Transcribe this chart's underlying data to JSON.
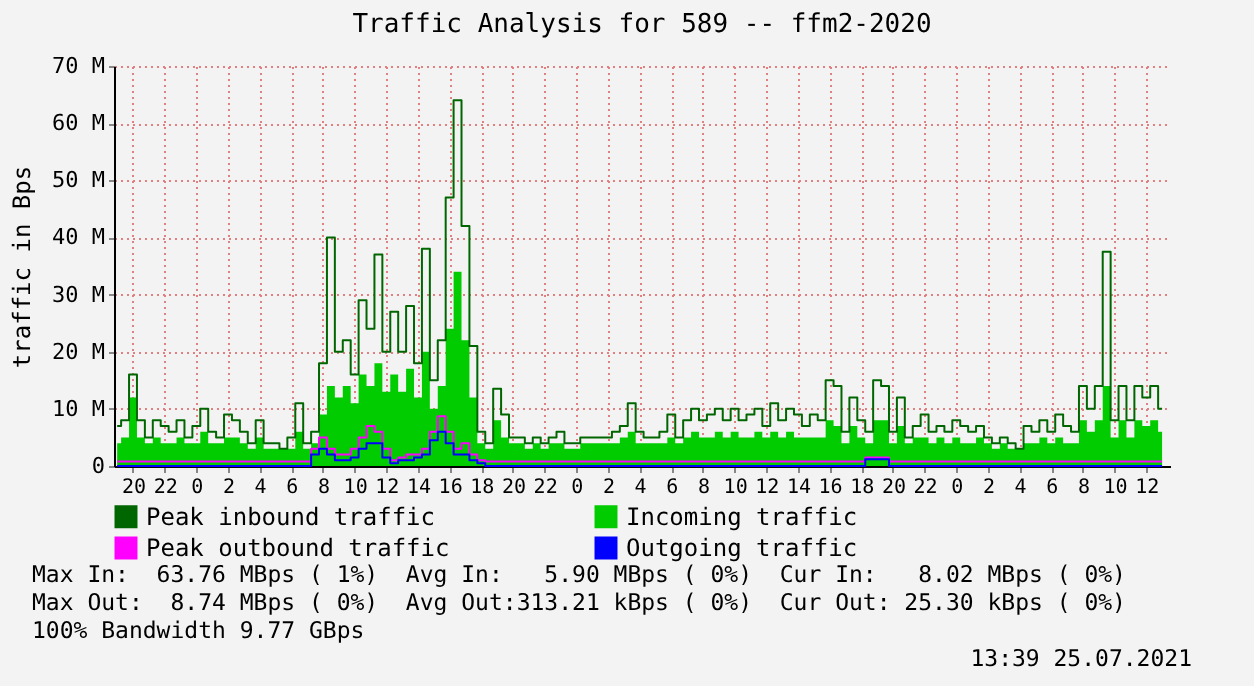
{
  "chart_data": {
    "type": "step",
    "title": "Traffic Analysis for 589 -- ffm2-2020",
    "ylabel": "traffic in Bps",
    "xlim": [
      "2021-07-22T18:48",
      "2021-07-25T13:30"
    ],
    "xticks": [
      {
        "value": "2021-07-22T20:00",
        "label": "20"
      },
      {
        "value": "2021-07-22T22:00",
        "label": "22"
      },
      {
        "value": "2021-07-23T00:00",
        "label": "0"
      },
      {
        "value": "2021-07-23T02:00",
        "label": "2"
      },
      {
        "value": "2021-07-23T04:00",
        "label": "4"
      },
      {
        "value": "2021-07-23T06:00",
        "label": "6"
      },
      {
        "value": "2021-07-23T08:00",
        "label": "8"
      },
      {
        "value": "2021-07-23T10:00",
        "label": "10"
      },
      {
        "value": "2021-07-23T12:00",
        "label": "12"
      },
      {
        "value": "2021-07-23T14:00",
        "label": "14"
      },
      {
        "value": "2021-07-23T16:00",
        "label": "16"
      },
      {
        "value": "2021-07-23T18:00",
        "label": "18"
      },
      {
        "value": "2021-07-23T20:00",
        "label": "20"
      },
      {
        "value": "2021-07-23T22:00",
        "label": "22"
      },
      {
        "value": "2021-07-24T00:00",
        "label": "0"
      },
      {
        "value": "2021-07-24T02:00",
        "label": "2"
      },
      {
        "value": "2021-07-24T04:00",
        "label": "4"
      },
      {
        "value": "2021-07-24T06:00",
        "label": "6"
      },
      {
        "value": "2021-07-24T08:00",
        "label": "8"
      },
      {
        "value": "2021-07-24T10:00",
        "label": "10"
      },
      {
        "value": "2021-07-24T12:00",
        "label": "12"
      },
      {
        "value": "2021-07-24T14:00",
        "label": "14"
      },
      {
        "value": "2021-07-24T16:00",
        "label": "16"
      },
      {
        "value": "2021-07-24T18:00",
        "label": "18"
      },
      {
        "value": "2021-07-24T20:00",
        "label": "20"
      },
      {
        "value": "2021-07-24T22:00",
        "label": "22"
      },
      {
        "value": "2021-07-25T00:00",
        "label": "0"
      },
      {
        "value": "2021-07-25T02:00",
        "label": "2"
      },
      {
        "value": "2021-07-25T04:00",
        "label": "4"
      },
      {
        "value": "2021-07-25T06:00",
        "label": "6"
      },
      {
        "value": "2021-07-25T08:00",
        "label": "8"
      },
      {
        "value": "2021-07-25T10:00",
        "label": "10"
      },
      {
        "value": "2021-07-25T12:00",
        "label": "12"
      }
    ],
    "ylim": [
      0,
      70
    ],
    "yticks": [
      0,
      {
        "value": 10,
        "label": "10 M"
      },
      {
        "value": 20,
        "label": "20 M"
      },
      {
        "value": 30,
        "label": "30 M"
      },
      {
        "value": 40,
        "label": "40 M"
      },
      {
        "value": 50,
        "label": "50 M"
      },
      {
        "value": 60,
        "label": "60 M"
      },
      {
        "value": 70,
        "label": "70 M"
      }
    ],
    "grid": true,
    "legend": "bottom",
    "x": [
      "2021-07-22T19:00",
      "2021-07-22T19:30",
      "2021-07-22T20:00",
      "2021-07-22T20:30",
      "2021-07-22T21:00",
      "2021-07-22T21:30",
      "2021-07-22T22:00",
      "2021-07-22T22:30",
      "2021-07-22T23:00",
      "2021-07-22T23:30",
      "2021-07-23T00:00",
      "2021-07-23T00:30",
      "2021-07-23T01:00",
      "2021-07-23T01:30",
      "2021-07-23T02:00",
      "2021-07-23T02:30",
      "2021-07-23T03:00",
      "2021-07-23T03:30",
      "2021-07-23T04:00",
      "2021-07-23T04:30",
      "2021-07-23T05:00",
      "2021-07-23T05:30",
      "2021-07-23T06:00",
      "2021-07-23T06:30",
      "2021-07-23T07:00",
      "2021-07-23T07:30",
      "2021-07-23T08:00",
      "2021-07-23T08:30",
      "2021-07-23T09:00",
      "2021-07-23T09:30",
      "2021-07-23T10:00",
      "2021-07-23T10:30",
      "2021-07-23T11:00",
      "2021-07-23T11:30",
      "2021-07-23T12:00",
      "2021-07-23T12:30",
      "2021-07-23T13:00",
      "2021-07-23T13:30",
      "2021-07-23T14:00",
      "2021-07-23T14:30",
      "2021-07-23T15:00",
      "2021-07-23T15:30",
      "2021-07-23T16:00",
      "2021-07-23T16:30",
      "2021-07-23T17:00",
      "2021-07-23T17:30",
      "2021-07-23T18:00",
      "2021-07-23T18:30",
      "2021-07-23T19:00",
      "2021-07-23T19:30",
      "2021-07-23T20:00",
      "2021-07-23T20:30",
      "2021-07-23T21:00",
      "2021-07-23T21:30",
      "2021-07-23T22:00",
      "2021-07-23T22:30",
      "2021-07-23T23:00",
      "2021-07-23T23:30",
      "2021-07-24T00:00",
      "2021-07-24T00:30",
      "2021-07-24T01:00",
      "2021-07-24T01:30",
      "2021-07-24T02:00",
      "2021-07-24T02:30",
      "2021-07-24T03:00",
      "2021-07-24T03:30",
      "2021-07-24T04:00",
      "2021-07-24T04:30",
      "2021-07-24T05:00",
      "2021-07-24T05:30",
      "2021-07-24T06:00",
      "2021-07-24T06:30",
      "2021-07-24T07:00",
      "2021-07-24T07:30",
      "2021-07-24T08:00",
      "2021-07-24T08:30",
      "2021-07-24T09:00",
      "2021-07-24T09:30",
      "2021-07-24T10:00",
      "2021-07-24T10:30",
      "2021-07-24T11:00",
      "2021-07-24T11:30",
      "2021-07-24T12:00",
      "2021-07-24T12:30",
      "2021-07-24T13:00",
      "2021-07-24T13:30",
      "2021-07-24T14:00",
      "2021-07-24T14:30",
      "2021-07-24T15:00",
      "2021-07-24T15:30",
      "2021-07-24T16:00",
      "2021-07-24T16:30",
      "2021-07-24T17:00",
      "2021-07-24T17:30",
      "2021-07-24T18:00",
      "2021-07-24T18:30",
      "2021-07-24T19:00",
      "2021-07-24T19:30",
      "2021-07-24T20:00",
      "2021-07-24T20:30",
      "2021-07-24T21:00",
      "2021-07-24T21:30",
      "2021-07-24T22:00",
      "2021-07-24T22:30",
      "2021-07-24T23:00",
      "2021-07-24T23:30",
      "2021-07-25T00:00",
      "2021-07-25T00:30",
      "2021-07-25T01:00",
      "2021-07-25T01:30",
      "2021-07-25T02:00",
      "2021-07-25T02:30",
      "2021-07-25T03:00",
      "2021-07-25T03:30",
      "2021-07-25T04:00",
      "2021-07-25T04:30",
      "2021-07-25T05:00",
      "2021-07-25T05:30",
      "2021-07-25T06:00",
      "2021-07-25T06:30",
      "2021-07-25T07:00",
      "2021-07-25T07:30",
      "2021-07-25T08:00",
      "2021-07-25T08:30",
      "2021-07-25T09:00",
      "2021-07-25T09:30",
      "2021-07-25T10:00",
      "2021-07-25T10:30",
      "2021-07-25T11:00",
      "2021-07-25T11:30",
      "2021-07-25T12:00",
      "2021-07-25T12:30",
      "2021-07-25T13:00"
    ],
    "series": [
      {
        "name": "Peak inbound traffic",
        "color": "#006600",
        "values": [
          7,
          8,
          16,
          8,
          5,
          8,
          7,
          6,
          8,
          5,
          7,
          10,
          6,
          5,
          9,
          8,
          6,
          4,
          8,
          4,
          4,
          3,
          5,
          11,
          4,
          6,
          18,
          40,
          20,
          22,
          16,
          29,
          24,
          37,
          20,
          27,
          20,
          28,
          18,
          38,
          15,
          22,
          47,
          64,
          42,
          21,
          6,
          4,
          13.5,
          9,
          5,
          5,
          4,
          5,
          4,
          5,
          6,
          4,
          4,
          5,
          5,
          5,
          5,
          6,
          7,
          11,
          6,
          5,
          5,
          6,
          9,
          5,
          8,
          10,
          8,
          9,
          10,
          8,
          10,
          8,
          9,
          10,
          7,
          11,
          8,
          10,
          9,
          7,
          9,
          8,
          15,
          14,
          6,
          12,
          8,
          6,
          15,
          14,
          6,
          12,
          5,
          7,
          9,
          6,
          7,
          6,
          8,
          7,
          6,
          7,
          5,
          4,
          5,
          4,
          3,
          7,
          6,
          8,
          6,
          9,
          7,
          6,
          14,
          10,
          14,
          37.5,
          8,
          14,
          8,
          14,
          12,
          14,
          10
        ]
      },
      {
        "name": "Incoming traffic",
        "type": "area",
        "color": "#00cc00",
        "values": [
          4,
          5,
          12,
          5,
          4,
          5,
          4,
          4,
          5,
          4,
          4,
          6,
          4,
          4,
          5,
          5,
          4,
          3,
          5,
          3,
          3,
          3,
          3,
          6,
          3,
          4,
          9,
          14,
          12,
          14,
          11,
          16,
          14,
          18,
          13,
          16,
          13,
          17,
          12,
          20,
          10,
          14,
          24,
          34,
          22,
          12,
          4,
          3,
          8,
          5,
          4,
          4,
          3,
          4,
          3,
          4,
          4,
          3,
          3,
          4,
          4,
          4,
          4,
          4,
          5,
          6,
          4,
          4,
          4,
          4,
          5,
          4,
          5,
          6,
          5,
          5,
          6,
          5,
          6,
          5,
          5,
          6,
          5,
          6,
          5,
          6,
          5,
          5,
          5,
          5,
          8,
          7,
          4,
          7,
          5,
          4,
          8,
          8,
          4,
          7,
          4,
          5,
          5,
          4,
          5,
          4,
          5,
          4,
          4,
          5,
          4,
          3,
          4,
          3,
          3,
          4,
          4,
          5,
          4,
          5,
          4,
          4,
          8,
          6,
          8,
          14,
          5,
          8,
          5,
          8,
          7,
          8,
          6
        ]
      },
      {
        "name": "Peak outbound traffic",
        "color": "#ff00ff",
        "x": [
          "2021-07-22T19:00",
          "2021-07-22T22:00",
          "2021-07-23T01:00",
          "2021-07-23T04:00",
          "2021-07-23T07:00",
          "2021-07-23T07:30",
          "2021-07-23T08:00",
          "2021-07-23T08:30",
          "2021-07-23T09:00",
          "2021-07-23T09:30",
          "2021-07-23T10:00",
          "2021-07-23T10:30",
          "2021-07-23T11:00",
          "2021-07-23T11:30",
          "2021-07-23T12:00",
          "2021-07-23T12:30",
          "2021-07-23T13:00",
          "2021-07-23T13:30",
          "2021-07-23T14:00",
          "2021-07-23T14:30",
          "2021-07-23T15:00",
          "2021-07-23T15:30",
          "2021-07-23T16:00",
          "2021-07-23T16:30",
          "2021-07-23T17:00",
          "2021-07-23T17:30",
          "2021-07-23T18:00",
          "2021-07-23T18:30",
          "2021-07-23T19:00",
          "2021-07-23T22:00",
          "2021-07-24T02:00",
          "2021-07-24T07:00",
          "2021-07-24T12:00",
          "2021-07-24T17:00",
          "2021-07-24T19:30",
          "2021-07-24T20:00",
          "2021-07-24T22:00",
          "2021-07-25T03:00",
          "2021-07-25T08:00",
          "2021-07-25T13:00"
        ],
        "values": [
          0.8,
          0.8,
          0.8,
          0.8,
          0.8,
          3,
          5,
          3,
          2,
          2,
          3,
          5,
          7,
          6,
          3,
          1,
          1.5,
          2,
          2,
          3,
          6,
          8.7,
          6,
          3,
          4,
          2,
          1,
          0.8,
          0.8,
          0.8,
          0.8,
          0.8,
          0.8,
          0.8,
          1.5,
          0.8,
          0.8,
          0.8,
          0.8,
          0.8
        ]
      },
      {
        "name": "Outgoing traffic",
        "color": "#0000ff",
        "x": [
          "2021-07-22T19:00",
          "2021-07-22T22:00",
          "2021-07-23T01:00",
          "2021-07-23T04:00",
          "2021-07-23T07:00",
          "2021-07-23T07:30",
          "2021-07-23T08:00",
          "2021-07-23T08:30",
          "2021-07-23T09:00",
          "2021-07-23T09:30",
          "2021-07-23T10:00",
          "2021-07-23T10:30",
          "2021-07-23T11:00",
          "2021-07-23T11:30",
          "2021-07-23T12:00",
          "2021-07-23T12:30",
          "2021-07-23T13:00",
          "2021-07-23T13:30",
          "2021-07-23T14:00",
          "2021-07-23T14:30",
          "2021-07-23T15:00",
          "2021-07-23T15:30",
          "2021-07-23T16:00",
          "2021-07-23T16:30",
          "2021-07-23T17:00",
          "2021-07-23T17:30",
          "2021-07-23T18:00",
          "2021-07-23T18:30",
          "2021-07-23T19:00",
          "2021-07-23T22:00",
          "2021-07-24T02:00",
          "2021-07-24T07:00",
          "2021-07-24T12:00",
          "2021-07-24T17:00",
          "2021-07-24T19:30",
          "2021-07-24T20:00",
          "2021-07-24T22:00",
          "2021-07-25T03:00",
          "2021-07-25T08:00",
          "2021-07-25T13:00"
        ],
        "values": [
          0,
          0,
          0,
          0,
          0,
          2,
          3,
          2,
          1,
          1,
          1.5,
          3,
          4,
          4,
          1.5,
          0.5,
          1,
          1,
          1.5,
          2,
          4.5,
          6,
          4,
          2,
          2,
          1,
          0.5,
          0,
          0,
          0,
          0,
          0,
          0,
          0,
          1.2,
          0,
          0,
          0,
          0,
          0
        ]
      }
    ],
    "annotations": [
      "Max In:  63.76 MBps ( 1%)  Avg In:   5.90 MBps ( 0%)  Cur In:   8.02 MBps ( 0%)",
      "Max Out:  8.74 MBps ( 0%)  Avg Out:313.21 kBps ( 0%)  Cur Out: 25.30 kBps ( 0%)",
      "100% Bandwidth 9.77 GBps",
      "13:39 25.07.2021"
    ]
  }
}
